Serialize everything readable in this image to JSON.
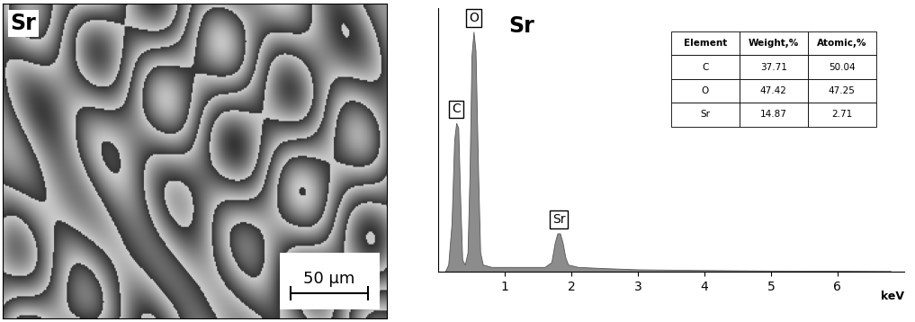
{
  "micrograph": {
    "label": "Sr",
    "scale_bar": "50 µm"
  },
  "chart_data": {
    "type": "area",
    "title": "Sr",
    "xlabel": "keV",
    "x": [
      0.1,
      0.15,
      0.2,
      0.24,
      0.27,
      0.3,
      0.33,
      0.36,
      0.4,
      0.44,
      0.47,
      0.5,
      0.53,
      0.56,
      0.6,
      0.63,
      0.67,
      0.8,
      1.0,
      1.2,
      1.4,
      1.6,
      1.7,
      1.75,
      1.79,
      1.83,
      1.87,
      1.91,
      1.95,
      2.1,
      2.5,
      3,
      4,
      5,
      6,
      6.8
    ],
    "values": [
      0,
      3,
      20,
      55,
      62,
      60,
      30,
      5,
      3,
      8,
      40,
      90,
      100,
      92,
      40,
      8,
      3,
      2,
      2,
      2,
      2,
      2,
      4,
      12,
      16,
      16,
      12,
      6,
      3,
      2,
      1.5,
      1,
      0.7,
      0.5,
      0.4,
      0.3
    ],
    "color": "#8c8c8c",
    "xlim": [
      0,
      7
    ],
    "xticks": [
      1,
      2,
      3,
      4,
      5,
      6
    ],
    "ylim": [
      0,
      110
    ],
    "tick_labels": "x",
    "annotations": [
      {
        "text": "C",
        "x": 0.27,
        "y": 62
      },
      {
        "text": "O",
        "x": 0.53,
        "y": 100
      },
      {
        "text": "Sr",
        "x": 1.81,
        "y": 16
      }
    ],
    "table": {
      "header": [
        "Element",
        "Weight,%",
        "Atomic,%"
      ],
      "rows": [
        [
          "C",
          "37.71",
          "50.04"
        ],
        [
          "O",
          "47.42",
          "47.25"
        ],
        [
          "Sr",
          "14.87",
          "2.71"
        ]
      ]
    }
  }
}
